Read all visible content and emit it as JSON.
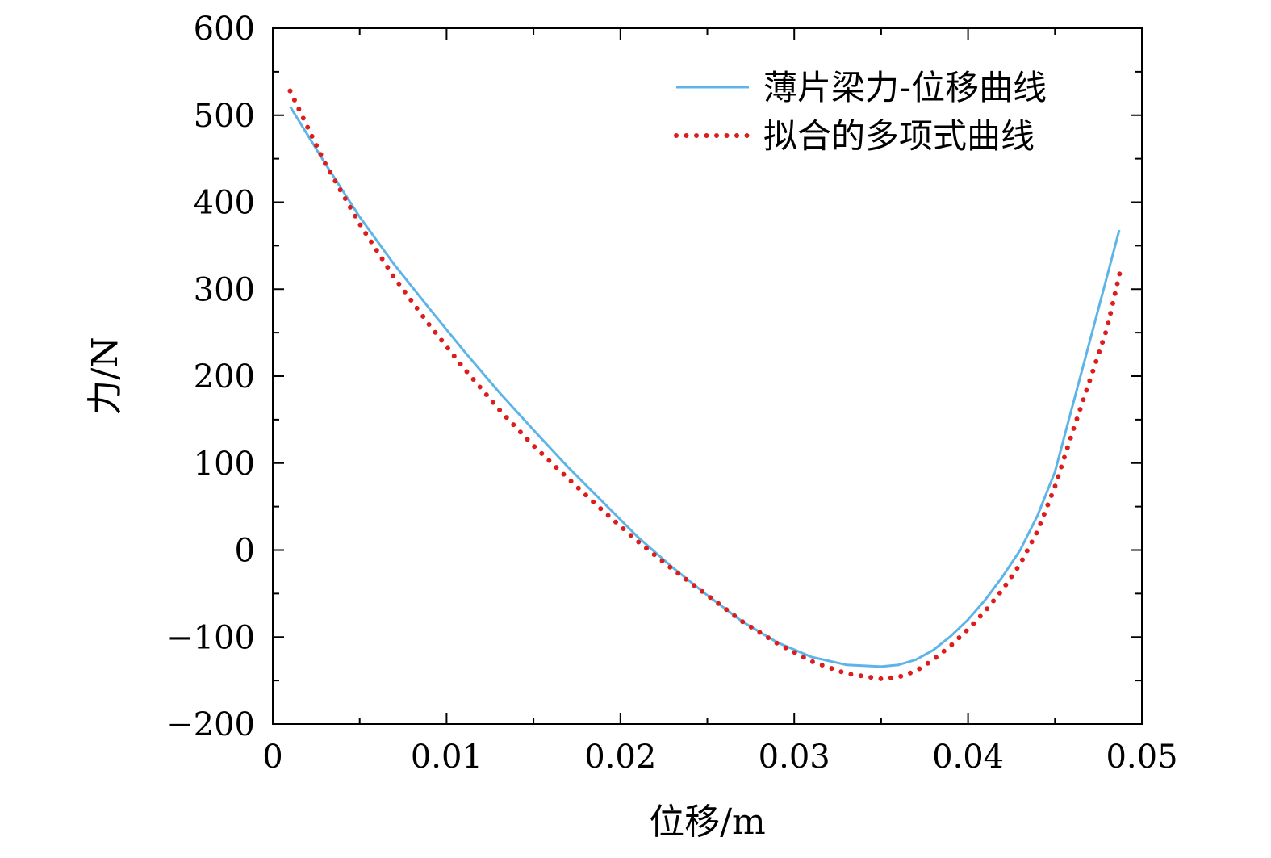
{
  "chart_data": {
    "type": "line",
    "xlabel": "位移/m",
    "ylabel": "力/N",
    "xlim": [
      0,
      0.05
    ],
    "ylim": [
      -200,
      600
    ],
    "x_ticks": [
      0,
      0.01,
      0.02,
      0.03,
      0.04,
      0.05
    ],
    "x_tick_labels": [
      "0",
      "0.01",
      "0.02",
      "0.03",
      "0.04",
      "0.05"
    ],
    "y_ticks": [
      -200,
      -100,
      0,
      100,
      200,
      300,
      400,
      500,
      600
    ],
    "y_tick_labels": [
      "−200",
      "−100",
      "0",
      "100",
      "200",
      "300",
      "400",
      "500",
      "600"
    ],
    "grid": false,
    "legend_position": "top-right",
    "series": [
      {
        "name": "薄片梁力-位移曲线",
        "style": "solid",
        "color": "#5db4e8",
        "x": [
          0.001,
          0.003,
          0.005,
          0.007,
          0.009,
          0.011,
          0.013,
          0.015,
          0.017,
          0.019,
          0.021,
          0.023,
          0.025,
          0.027,
          0.029,
          0.031,
          0.033,
          0.035,
          0.036,
          0.037,
          0.038,
          0.039,
          0.04,
          0.041,
          0.042,
          0.043,
          0.044,
          0.045,
          0.046,
          0.047,
          0.048,
          0.0487
        ],
        "y": [
          510,
          445,
          383,
          328,
          278,
          229,
          182,
          138,
          95,
          55,
          15,
          -20,
          -52,
          -82,
          -106,
          -123,
          -132,
          -134,
          -132,
          -126,
          -115,
          -99,
          -80,
          -57,
          -30,
          0,
          40,
          90,
          165,
          240,
          315,
          368
        ]
      },
      {
        "name": "拟合的多项式曲线",
        "style": "dotted",
        "color": "#dd1c1c",
        "x": [
          0.001,
          0.003,
          0.005,
          0.007,
          0.009,
          0.011,
          0.013,
          0.015,
          0.017,
          0.019,
          0.021,
          0.023,
          0.025,
          0.027,
          0.029,
          0.031,
          0.033,
          0.035,
          0.036,
          0.037,
          0.038,
          0.039,
          0.04,
          0.041,
          0.042,
          0.043,
          0.044,
          0.045,
          0.046,
          0.047,
          0.048,
          0.0488
        ],
        "y": [
          528,
          445,
          375,
          313,
          259,
          209,
          162,
          120,
          82,
          45,
          10,
          -22,
          -52,
          -82,
          -107,
          -128,
          -142,
          -148,
          -146,
          -139,
          -126,
          -110,
          -91,
          -70,
          -45,
          -16,
          22,
          73,
          135,
          195,
          255,
          325
        ]
      }
    ]
  }
}
